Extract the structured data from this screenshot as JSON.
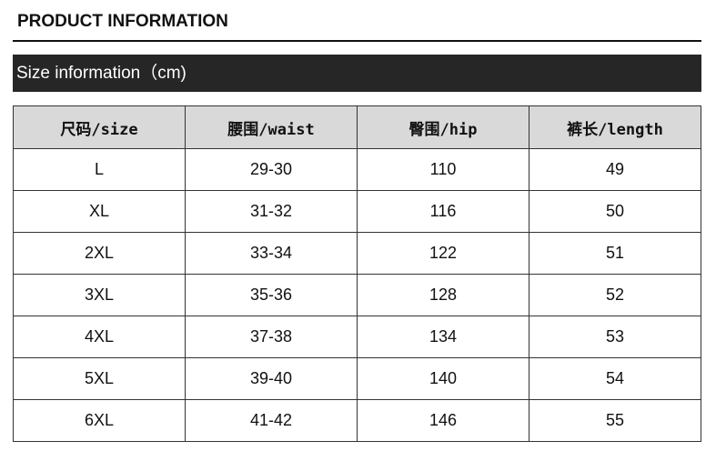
{
  "title": "PRODUCT INFORMATION",
  "section": "Size information（cm)",
  "table": {
    "headers": [
      "尺码/size",
      "腰围/waist",
      "臀围/hip",
      "裤长/length"
    ],
    "rows": [
      [
        "L",
        "29-30",
        "110",
        "49"
      ],
      [
        "XL",
        "31-32",
        "116",
        "50"
      ],
      [
        "2XL",
        "33-34",
        "122",
        "51"
      ],
      [
        "3XL",
        "35-36",
        "128",
        "52"
      ],
      [
        "4XL",
        "37-38",
        "134",
        "53"
      ],
      [
        "5XL",
        "39-40",
        "140",
        "54"
      ],
      [
        "6XL",
        "41-42",
        "146",
        "55"
      ]
    ]
  }
}
